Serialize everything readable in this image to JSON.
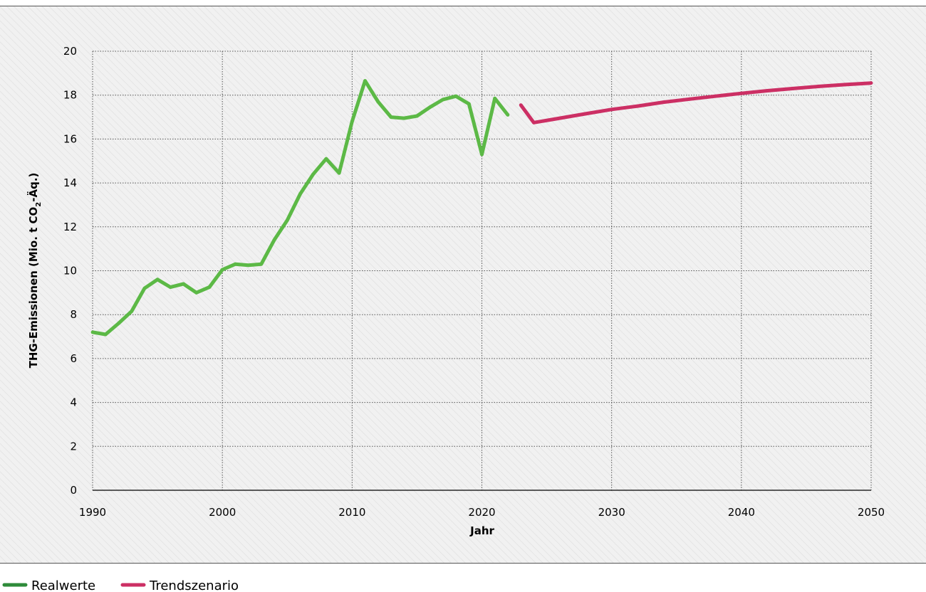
{
  "chart_data": {
    "type": "line",
    "xlabel": "Jahr",
    "ylabel": {
      "main": "THG-Emissionen (Mio. t CO",
      "sub": "2",
      "tail": "-Äq.)"
    },
    "xlim": [
      1990,
      2050
    ],
    "ylim": [
      0,
      20
    ],
    "xticks": [
      "1990",
      "2000",
      "2010",
      "2020",
      "2030",
      "2040",
      "2050"
    ],
    "yticks": [
      "0",
      "2",
      "4",
      "6",
      "8",
      "10",
      "12",
      "14",
      "16",
      "18",
      "20"
    ],
    "grid": true,
    "legend_position": "bottom-left",
    "series": [
      {
        "name": "Realwerte",
        "color": "#5cb946",
        "legend_color": "#2e8b3a",
        "x": [
          1990,
          1991,
          1992,
          1993,
          1994,
          1995,
          1996,
          1997,
          1998,
          1999,
          2000,
          2001,
          2002,
          2003,
          2004,
          2005,
          2006,
          2007,
          2008,
          2009,
          2010,
          2011,
          2012,
          2013,
          2014,
          2015,
          2016,
          2017,
          2018,
          2019,
          2020,
          2021,
          2022
        ],
        "y": [
          7.2,
          7.1,
          7.6,
          8.15,
          9.2,
          9.6,
          9.25,
          9.4,
          9.0,
          9.25,
          10.05,
          10.3,
          10.25,
          10.3,
          11.4,
          12.3,
          13.5,
          14.4,
          15.1,
          14.45,
          16.8,
          18.65,
          17.7,
          17.0,
          16.95,
          17.05,
          17.45,
          17.8,
          17.95,
          17.6,
          15.3,
          17.85,
          17.1
        ]
      },
      {
        "name": "Trendszenario",
        "color": "#cc2f64",
        "legend_color": "#cc2f64",
        "x": [
          2023,
          2024,
          2026,
          2028,
          2030,
          2032,
          2034,
          2036,
          2038,
          2040,
          2042,
          2044,
          2046,
          2048,
          2050
        ],
        "y": [
          17.55,
          16.75,
          16.95,
          17.15,
          17.35,
          17.5,
          17.68,
          17.82,
          17.95,
          18.08,
          18.2,
          18.3,
          18.4,
          18.48,
          18.55
        ]
      }
    ]
  }
}
